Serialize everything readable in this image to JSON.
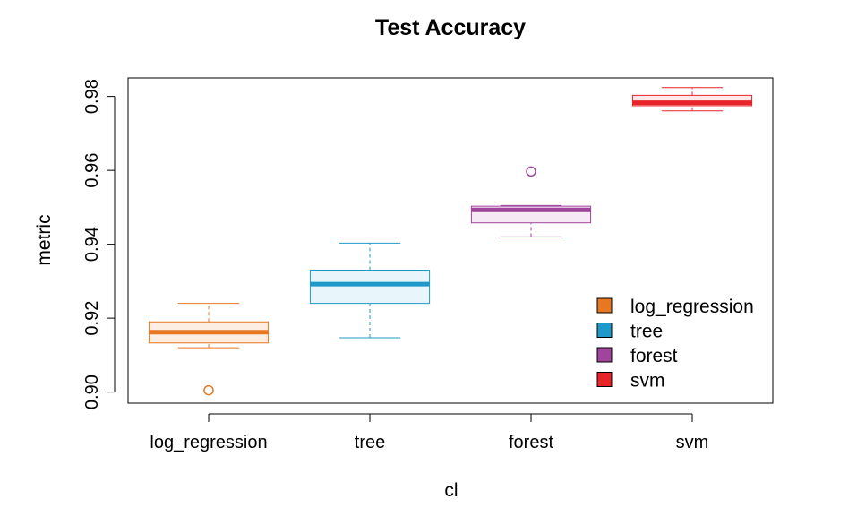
{
  "chart_data": {
    "type": "boxplot",
    "title": "Test Accuracy",
    "xlabel": "cl",
    "ylabel": "metric",
    "ylim": [
      0.897,
      0.985
    ],
    "yticks": [
      "0.90",
      "0.92",
      "0.94",
      "0.96",
      "0.98"
    ],
    "categories": [
      "log_regression",
      "tree",
      "forest",
      "svm"
    ],
    "series": [
      {
        "name": "log_regression",
        "color": "#E87722",
        "fill": "#FCEEE3",
        "whisker_low": 0.912,
        "q1": 0.9133,
        "median": 0.9162,
        "q3": 0.919,
        "whisker_high": 0.924,
        "outliers": [
          0.9005
        ]
      },
      {
        "name": "tree",
        "color": "#1F99C9",
        "fill": "#E8F5FA",
        "whisker_low": 0.9147,
        "q1": 0.924,
        "median": 0.9292,
        "q3": 0.933,
        "whisker_high": 0.9403,
        "outliers": []
      },
      {
        "name": "forest",
        "color": "#A0459B",
        "fill": "#F5EAF4",
        "whisker_low": 0.942,
        "q1": 0.9458,
        "median": 0.9493,
        "q3": 0.9503,
        "whisker_high": 0.9505,
        "outliers": [
          0.9597
        ]
      },
      {
        "name": "svm",
        "color": "#E8242B",
        "fill": "#FDE9E9",
        "whisker_low": 0.9761,
        "q1": 0.9775,
        "median": 0.9783,
        "q3": 0.9803,
        "whisker_high": 0.9824,
        "outliers": []
      }
    ],
    "legend": {
      "position": "bottom-right",
      "entries": [
        "log_regression",
        "tree",
        "forest",
        "svm"
      ]
    }
  }
}
